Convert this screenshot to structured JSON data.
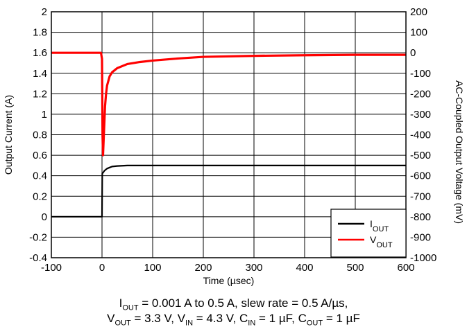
{
  "chart_data": {
    "type": "line",
    "title": "",
    "xlabel": "Time (µsec)",
    "ylabel": "Output Current (A)",
    "y2label": "AC-Coupled Output Voltage (mV)",
    "xlim": [
      -100,
      600
    ],
    "ylim": [
      -0.4,
      2
    ],
    "y2lim": [
      -1000,
      200
    ],
    "grid": true,
    "legend_position": "bottom-right",
    "x_ticks": [
      "-100",
      "0",
      "100",
      "200",
      "300",
      "400",
      "500",
      "600"
    ],
    "y_ticks": [
      "-0.4",
      "-0.2",
      "0",
      "0.2",
      "0.4",
      "0.6",
      "0.8",
      "1",
      "1.2",
      "1.4",
      "1.6",
      "1.8",
      "2"
    ],
    "y2_ticks": [
      "-1000",
      "-900",
      "-800",
      "-700",
      "-600",
      "-500",
      "-400",
      "-300",
      "-200",
      "-100",
      "0",
      "100",
      "200"
    ],
    "series": [
      {
        "name_main": "I",
        "name_sub": "OUT",
        "color": "#000000",
        "axis": "left",
        "x": [
          -100,
          0,
          0.5,
          2,
          5,
          10,
          15,
          20,
          30,
          50,
          100,
          200,
          400,
          600
        ],
        "y": [
          0,
          0,
          0.42,
          0.43,
          0.45,
          0.47,
          0.48,
          0.49,
          0.495,
          0.5,
          0.5,
          0.5,
          0.5,
          0.5
        ]
      },
      {
        "name_main": "V",
        "name_sub": "OUT",
        "color": "#ff0000",
        "axis": "right",
        "x": [
          -100,
          -2,
          0,
          0.5,
          1,
          2,
          4,
          6,
          8,
          10,
          15,
          20,
          30,
          50,
          75,
          100,
          150,
          200,
          300,
          400,
          500,
          600
        ],
        "y": [
          0,
          0,
          -30,
          -200,
          -400,
          -500,
          -380,
          -260,
          -200,
          -160,
          -115,
          -95,
          -75,
          -55,
          -45,
          -38,
          -28,
          -20,
          -15,
          -12,
          -10,
          -10
        ]
      }
    ]
  },
  "caption": {
    "line1": {
      "p1": "I",
      "s1": "OUT",
      "rest": " = 0.001 A to 0.5 A, slew rate = 0.5 A/µs,"
    },
    "line2": {
      "p1": "V",
      "s1": "OUT",
      "t1": " = 3.3 V, V",
      "s2": "IN",
      "t2": " = 4.3 V, C",
      "s3": "IN",
      "t3": " = 1 µF, C",
      "s4": "OUT",
      "t4": " = 1 µF"
    }
  }
}
